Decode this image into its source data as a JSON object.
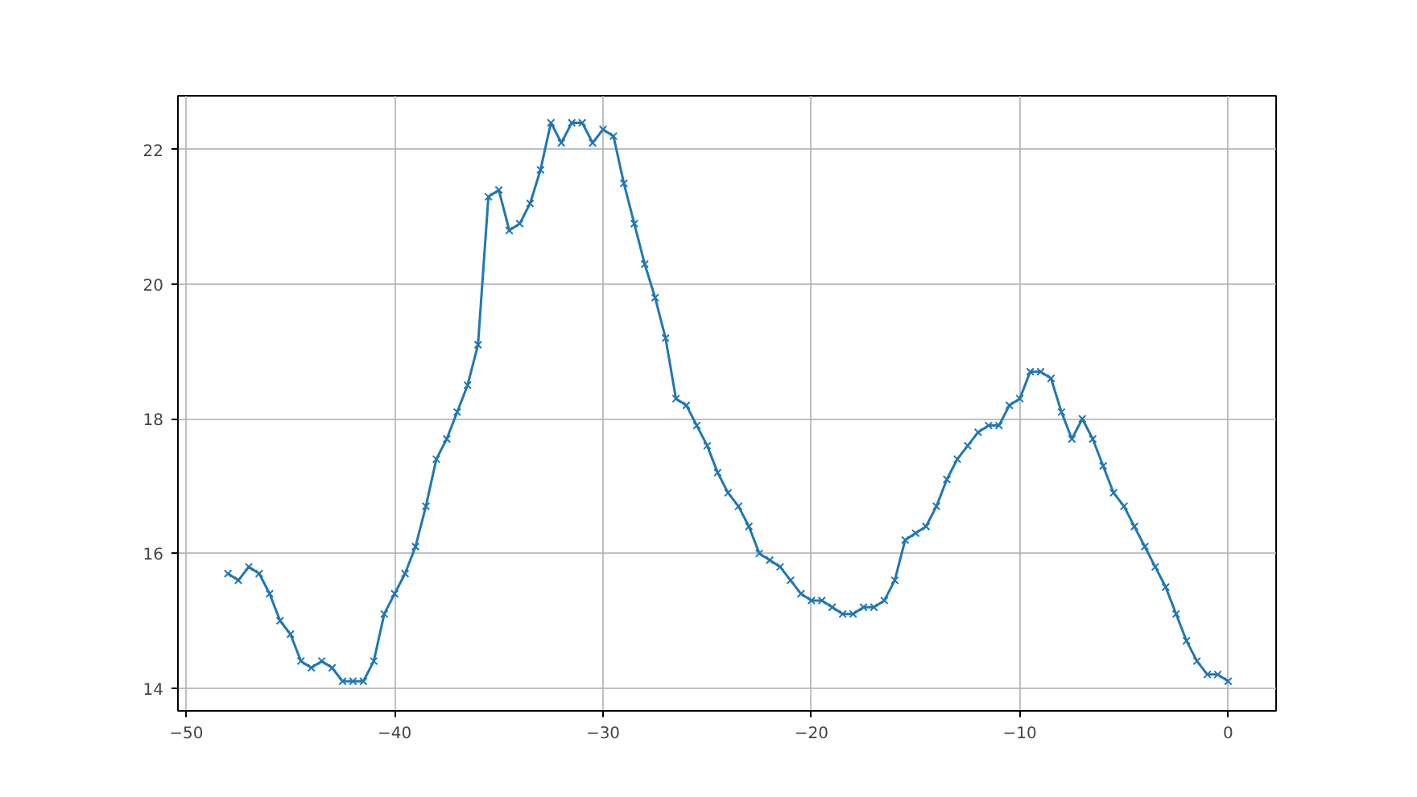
{
  "chart_data": {
    "type": "line",
    "marker": "cross",
    "line_style": "solid",
    "grid": true,
    "x": [
      -48,
      -47.5,
      -47,
      -46.5,
      -46,
      -45.5,
      -45,
      -44.5,
      -44,
      -43.5,
      -43,
      -42.5,
      -42,
      -41.5,
      -41,
      -40.5,
      -40,
      -39.5,
      -39,
      -38.5,
      -38,
      -37.5,
      -37,
      -36.5,
      -36,
      -35.5,
      -35,
      -34.5,
      -34,
      -33.5,
      -33,
      -32.5,
      -32,
      -31.5,
      -31,
      -30.5,
      -30,
      -29.5,
      -29,
      -28.5,
      -28,
      -27.5,
      -27,
      -26.5,
      -26,
      -25.5,
      -25,
      -24.5,
      -24,
      -23.5,
      -23,
      -22.5,
      -22,
      -21.5,
      -21,
      -20.5,
      -20,
      -19.5,
      -19,
      -18.5,
      -18,
      -17.5,
      -17,
      -16.5,
      -16,
      -15.5,
      -15,
      -14.5,
      -14,
      -13.5,
      -13,
      -12.5,
      -12,
      -11.5,
      -11,
      -10.5,
      -10,
      -9.5,
      -9,
      -8.5,
      -8,
      -7.5,
      -7,
      -6.5,
      -6,
      -5.5,
      -5,
      -4.5,
      -4,
      -3.5,
      -3,
      -2.5,
      -2,
      -1.5,
      -1,
      -0.5,
      0
    ],
    "series": [
      {
        "color": "#1f77b4",
        "values": [
          15.7,
          15.6,
          15.8,
          15.7,
          15.4,
          15.0,
          14.8,
          14.4,
          14.3,
          14.4,
          14.3,
          14.1,
          14.1,
          14.1,
          14.4,
          15.1,
          15.4,
          15.7,
          16.1,
          16.7,
          17.4,
          17.7,
          18.1,
          18.5,
          19.1,
          21.3,
          21.4,
          20.8,
          20.9,
          21.2,
          21.7,
          22.4,
          22.1,
          22.4,
          22.4,
          22.1,
          22.3,
          22.2,
          21.5,
          20.9,
          20.3,
          19.8,
          19.2,
          18.3,
          18.2,
          17.9,
          17.6,
          17.2,
          16.9,
          16.7,
          16.4,
          16.0,
          15.9,
          15.8,
          15.6,
          15.4,
          15.3,
          15.3,
          15.2,
          15.1,
          15.1,
          15.2,
          15.2,
          15.3,
          15.6,
          16.2,
          16.3,
          16.4,
          16.7,
          17.1,
          17.4,
          17.6,
          17.8,
          17.9,
          17.9,
          18.2,
          18.3,
          18.7,
          18.7,
          18.6,
          18.1,
          17.7,
          18.0,
          17.7,
          17.3,
          16.9,
          16.7,
          16.4,
          16.1,
          15.8,
          15.5,
          15.1,
          14.7,
          14.4,
          14.2,
          14.2,
          14.1
        ]
      }
    ],
    "xlim": [
      -50.4,
      2.3
    ],
    "xticks": [
      -50,
      -40,
      -30,
      -20,
      -10,
      0
    ],
    "ylim": [
      13.66,
      22.8
    ],
    "yticks": [
      14,
      16,
      18,
      20,
      22
    ]
  }
}
